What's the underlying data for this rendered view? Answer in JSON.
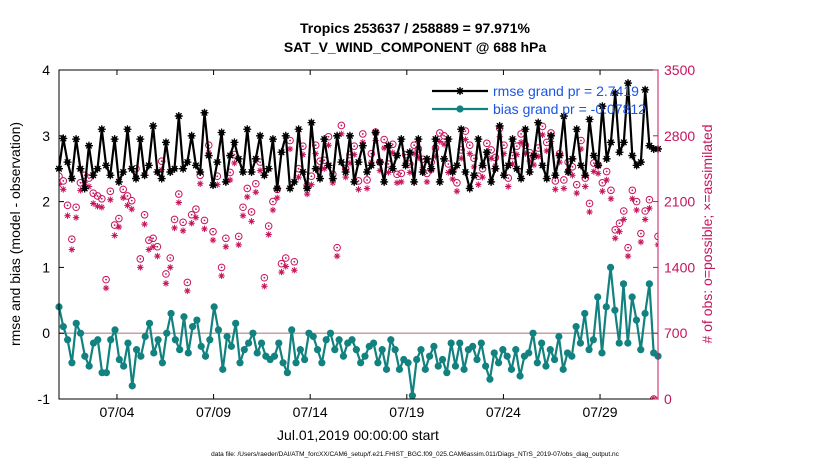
{
  "chart_data": {
    "type": "line",
    "title": "Tropics 253637 / 258889 = 97.971%",
    "subtitle": "SAT_V_WIND_COMPONENT @ 688 hPa",
    "xlabel": "Jul.01,2019 00:00:00 start",
    "ylabel_left": "rmse and bias (model - observation)",
    "ylabel_right": "# of obs: o=possible; ×=assimilated",
    "x_ticks": [
      "07/04",
      "07/09",
      "07/14",
      "07/19",
      "07/24",
      "07/29"
    ],
    "x_tick_days": [
      4,
      9,
      14,
      19,
      24,
      29
    ],
    "xlim": [
      1.0,
      32.0
    ],
    "ylim_left": [
      -1,
      4
    ],
    "y_ticks_left": [
      "-1",
      "0",
      "1",
      "2",
      "3",
      "4"
    ],
    "y_tick_values_left": [
      -1,
      0,
      1,
      2,
      3,
      4
    ],
    "ylim_right": [
      0,
      3500
    ],
    "y_ticks_right": [
      "0",
      "700",
      "1400",
      "2100",
      "2800",
      "3500"
    ],
    "y_tick_values_right": [
      0,
      700,
      1400,
      2100,
      2800,
      3500
    ],
    "series": [
      {
        "name": "rmse grand pr = 2.7419",
        "axis": "left",
        "color": "#000000",
        "marker": "star",
        "values": [
          2.5,
          2.96,
          2.6,
          2.35,
          2.95,
          2.5,
          2.2,
          2.85,
          2.4,
          2.5,
          3.1,
          2.55,
          2.4,
          2.95,
          2.3,
          2.45,
          3.1,
          2.5,
          2.35,
          2.95,
          2.4,
          2.55,
          3.15,
          2.45,
          2.35,
          2.9,
          2.45,
          2.5,
          3.3,
          2.5,
          2.6,
          3.0,
          2.55,
          2.45,
          3.35,
          2.7,
          2.25,
          2.6,
          3.05,
          2.3,
          2.7,
          2.9,
          2.65,
          2.45,
          3.1,
          2.45,
          2.65,
          3.0,
          2.4,
          2.5,
          2.95,
          2.2,
          2.75,
          3.0,
          2.2,
          2.3,
          3.1,
          2.45,
          2.2,
          3.2,
          2.5,
          2.35,
          2.95,
          2.55,
          2.35,
          3.0,
          2.6,
          2.45,
          3.0,
          2.3,
          2.6,
          2.85,
          2.45,
          2.55,
          3.05,
          2.6,
          2.3,
          2.85,
          2.5,
          2.7,
          2.95,
          2.55,
          2.75,
          2.3,
          2.95,
          2.45,
          2.65,
          2.5,
          2.95,
          2.3,
          2.65,
          2.95,
          2.45,
          2.55,
          3.1,
          2.45,
          2.2,
          2.4,
          2.95,
          2.55,
          2.75,
          2.3,
          2.5,
          3.15,
          2.4,
          2.55,
          2.95,
          2.5,
          2.35,
          3.1,
          2.45,
          2.7,
          3.2,
          2.55,
          2.35,
          3.0,
          2.4,
          2.7,
          3.3,
          2.45,
          2.65,
          3.1,
          2.55,
          2.4,
          3.25,
          2.7,
          2.55,
          3.45,
          2.65,
          2.9,
          3.65,
          2.75,
          2.9,
          3.8,
          2.7,
          2.55,
          2.6,
          3.7,
          2.85,
          2.8,
          2.8
        ],
        "legend": "rmse grand pr = 2.7419"
      },
      {
        "name": "bias grand pr = -0.07812",
        "axis": "left",
        "color": "#11827f",
        "marker": "dot",
        "values": [
          0.4,
          0.1,
          -0.1,
          -0.45,
          0.15,
          0.0,
          -0.35,
          -0.5,
          -0.15,
          -0.1,
          -0.6,
          -0.6,
          -0.1,
          0.05,
          -0.4,
          -0.5,
          -0.15,
          -0.8,
          -0.25,
          -0.35,
          -0.05,
          0.15,
          -0.3,
          -0.1,
          -0.45,
          0.0,
          0.3,
          -0.1,
          -0.25,
          0.25,
          -0.3,
          0.1,
          0.2,
          -0.2,
          -0.35,
          -0.1,
          0.4,
          0.05,
          -0.55,
          -0.05,
          -0.2,
          0.15,
          -0.45,
          -0.25,
          -0.15,
          0.0,
          -0.3,
          -0.15,
          -0.35,
          -0.4,
          -0.35,
          -0.15,
          -0.45,
          -0.6,
          0.05,
          -0.45,
          -0.25,
          -0.4,
          0.0,
          -0.05,
          -0.25,
          -0.45,
          -0.1,
          0.0,
          -0.25,
          -0.1,
          -0.35,
          -0.15,
          -0.1,
          -0.25,
          -0.45,
          -0.35,
          -0.2,
          -0.15,
          -0.45,
          -0.25,
          -0.55,
          -0.1,
          -0.25,
          -0.55,
          -0.4,
          -0.45,
          -0.95,
          -0.4,
          -0.25,
          -0.55,
          -0.35,
          -0.2,
          -0.5,
          -0.4,
          -0.6,
          -0.15,
          -0.5,
          -0.15,
          -0.55,
          -0.25,
          -0.2,
          -0.4,
          -0.15,
          -0.5,
          -0.7,
          -0.3,
          -0.45,
          -0.25,
          -0.35,
          -0.55,
          -0.25,
          -0.65,
          -0.35,
          -0.3,
          0.0,
          -0.45,
          -0.15,
          -0.5,
          -0.25,
          -0.4,
          -0.05,
          -0.55,
          -0.3,
          -0.35,
          0.1,
          -0.15,
          0.3,
          -0.25,
          -0.1,
          0.55,
          -0.3,
          0.4,
          1.0,
          0.35,
          -0.15,
          0.75,
          -0.15,
          0.55,
          0.2,
          -0.25,
          0.3,
          0.75,
          -0.3,
          -0.35
        ]
      },
      {
        "name": "possible",
        "axis": "right",
        "color": "#c7145c",
        "marker": "o",
        "values": [
          2370,
          2320,
          2060,
          1700,
          2040,
          2300,
          2380,
          2350,
          2190,
          2160,
          2130,
          1270,
          2210,
          1850,
          1920,
          2230,
          2160,
          2110,
          2450,
          1490,
          1960,
          1690,
          1710,
          1620,
          2530,
          1330,
          1500,
          1910,
          2180,
          1880,
          1240,
          1960,
          2020,
          2380,
          1900,
          2700,
          1780,
          2370,
          1400,
          1710,
          2410,
          2600,
          1730,
          2040,
          2240,
          1990,
          2290,
          2520,
          1290,
          1840,
          2100,
          2230,
          1440,
          1500,
          2750,
          1460,
          2450,
          2690,
          2270,
          2370,
          2700,
          2530,
          2540,
          2790,
          2390,
          1610,
          2910,
          2450,
          2600,
          2690,
          2320,
          2820,
          2330,
          2610,
          2840,
          2520,
          2760,
          2500,
          2710,
          2390,
          2400,
          2600,
          2500,
          2700,
          2660,
          2550,
          2400,
          2520,
          2670,
          2830,
          2800,
          2500,
          2430,
          2300,
          2650,
          2850,
          2700,
          2560,
          2370,
          2450,
          2720,
          2650,
          2570,
          2880,
          2700,
          2350,
          2590,
          2690,
          2820,
          2700,
          2620,
          2580,
          2670,
          2900,
          2730,
          2830,
          2320,
          2610,
          2330,
          2520,
          2470,
          2280,
          2750,
          2350,
          2080,
          2510,
          2490,
          2300,
          2420,
          2220,
          1800,
          1870,
          2000,
          1610,
          2220,
          2100,
          1760,
          2000,
          2120,
          0,
          1730
        ],
        "legend": ""
      },
      {
        "name": "assimilated",
        "axis": "right",
        "color": "#c7145c",
        "marker": "x",
        "values": [
          2280,
          2230,
          1950,
          1590,
          1930,
          2220,
          2300,
          2260,
          2080,
          2050,
          2040,
          1180,
          2120,
          1740,
          1830,
          2140,
          2060,
          2020,
          2360,
          1400,
          1860,
          1590,
          1620,
          1520,
          2440,
          1230,
          1400,
          1820,
          2090,
          1790,
          1150,
          1870,
          1930,
          2290,
          1810,
          2620,
          1690,
          2280,
          1310,
          1620,
          2330,
          2510,
          1640,
          1950,
          2150,
          1890,
          2200,
          2430,
          1200,
          1750,
          2010,
          2140,
          1350,
          1410,
          2660,
          1370,
          2360,
          2600,
          2180,
          2280,
          2610,
          2450,
          2450,
          2700,
          2300,
          1520,
          2820,
          2360,
          2510,
          2600,
          2230,
          2730,
          2240,
          2520,
          2750,
          2430,
          2670,
          2410,
          2620,
          2300,
          2310,
          2510,
          2410,
          2610,
          2570,
          2460,
          2310,
          2430,
          2580,
          2740,
          2710,
          2410,
          2340,
          2210,
          2560,
          2760,
          2610,
          2470,
          2280,
          2360,
          2630,
          2560,
          2480,
          2790,
          2610,
          2260,
          2500,
          2600,
          2730,
          2610,
          2530,
          2490,
          2580,
          2810,
          2640,
          2740,
          2230,
          2520,
          2240,
          2430,
          2380,
          2190,
          2660,
          2260,
          1990,
          2420,
          2400,
          2210,
          2330,
          2130,
          1710,
          1780,
          1910,
          1520,
          2130,
          2010,
          1670,
          1910,
          2030,
          0,
          1640
        ],
        "legend": ""
      }
    ],
    "legend_position": "top-right",
    "footer": "data file: /Users/raeder/DAI/ATM_forcXX/CAM6_setup/f.e21.FHIST_BGC.f09_025.CAM6assim.011/Diags_NTrS_2019-07/obs_diag_output.nc"
  },
  "colors": {
    "black": "#000000",
    "teal": "#11827f",
    "crimson": "#c7145c",
    "legend_text": "#1a55e6",
    "zero_line": "#c8a0a0"
  }
}
